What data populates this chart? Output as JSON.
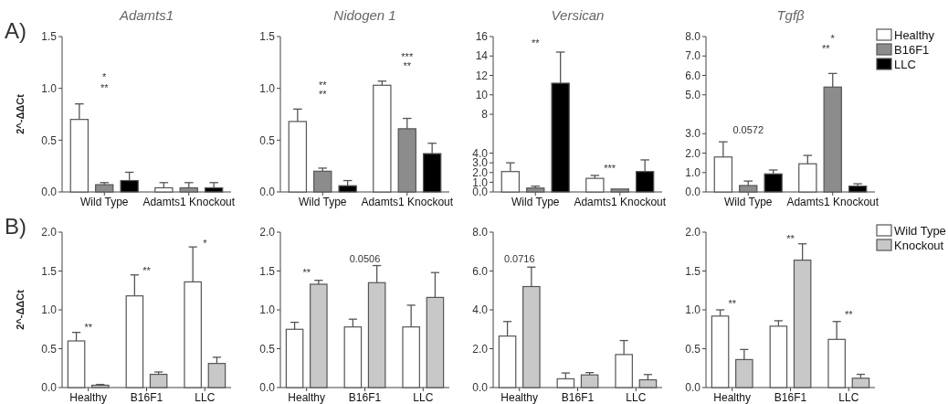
{
  "chart_data": [
    {
      "type": "bar",
      "title": "Adamts1",
      "ylabel": "2^-ΔΔCt",
      "categories": [
        "Wild Type",
        "Adamts1 Knockout"
      ],
      "series": [
        {
          "color": "#ffffff",
          "values": [
            0.7,
            0.04
          ],
          "errors": [
            0.15,
            0.05
          ]
        },
        {
          "color": "#8c8c8c",
          "values": [
            0.07,
            0.04
          ],
          "errors": [
            0.02,
            0.05
          ]
        },
        {
          "color": "#000000",
          "values": [
            0.11,
            0.04
          ],
          "errors": [
            0.08,
            0.05
          ]
        }
      ],
      "ylim": [
        0,
        1.5
      ],
      "yticks": [
        {
          "value": 0,
          "label": "0.0"
        },
        {
          "value": 0.5,
          "label": "0.5"
        },
        {
          "value": 1,
          "label": "1.0"
        },
        {
          "value": 1.5,
          "label": "1.5"
        }
      ],
      "annotations": [
        "A)",
        "**",
        "*"
      ]
    },
    {
      "type": "bar",
      "title": "Nidogen 1",
      "categories": [
        "Wild Type",
        "Adamts1 Knockout"
      ],
      "series": [
        {
          "color": "#ffffff",
          "values": [
            0.68,
            1.03
          ],
          "errors": [
            0.12,
            0.04
          ]
        },
        {
          "color": "#8c8c8c",
          "values": [
            0.2,
            0.61
          ],
          "errors": [
            0.03,
            0.1
          ]
        },
        {
          "color": "#000000",
          "values": [
            0.06,
            0.37
          ],
          "errors": [
            0.05,
            0.1
          ]
        }
      ],
      "ylim": [
        0,
        1.5
      ],
      "yticks": [
        {
          "value": 0,
          "label": "0.0"
        },
        {
          "value": 0.5,
          "label": "0.5"
        },
        {
          "value": 1,
          "label": "1.0"
        },
        {
          "value": 1.5,
          "label": "1.5"
        }
      ],
      "annotations": [
        "**",
        "**",
        "**",
        "***"
      ]
    },
    {
      "type": "bar",
      "title": "Versican",
      "categories": [
        "Wild Type",
        "Adamts1 Knockout"
      ],
      "series": [
        {
          "color": "#ffffff",
          "values": [
            2.1,
            1.4
          ],
          "errors": [
            0.9,
            0.3
          ]
        },
        {
          "color": "#8c8c8c",
          "values": [
            0.4,
            0.3
          ],
          "errors": [
            0.2,
            null
          ]
        },
        {
          "color": "#000000",
          "values": [
            11.2,
            2.1
          ],
          "errors": [
            3.2,
            1.2
          ]
        }
      ],
      "ylim": [
        0,
        16
      ],
      "yticks": [
        {
          "value": 0,
          "label": "0.0"
        },
        {
          "value": 1,
          "label": "1.0"
        },
        {
          "value": 2,
          "label": "2.0"
        },
        {
          "value": 3,
          "label": "3.0"
        },
        {
          "value": 4,
          "label": "4.0"
        },
        8,
        10,
        12,
        14,
        16
      ],
      "annotations": [
        "**",
        "***"
      ]
    },
    {
      "type": "bar",
      "title": "Tgfβ",
      "categories": [
        "Wild Type",
        "Adamts1 Knockout"
      ],
      "legend": "top right",
      "series": [
        {
          "name": "Healthy",
          "color": "#ffffff",
          "values": [
            1.8,
            1.45
          ],
          "errors": [
            0.78,
            0.43
          ]
        },
        {
          "name": "B16F1",
          "color": "#8c8c8c",
          "values": [
            0.33,
            5.4
          ],
          "errors": [
            0.23,
            0.7
          ]
        },
        {
          "name": "LLC",
          "color": "#000000",
          "values": [
            0.93,
            0.3
          ],
          "errors": [
            0.2,
            0.12
          ]
        }
      ],
      "ylim": [
        0,
        8
      ],
      "yticks": [
        {
          "value": 0,
          "label": "0.0"
        },
        {
          "value": 1,
          "label": "1.0"
        },
        {
          "value": 2,
          "label": "2.0"
        },
        {
          "value": 3,
          "label": "3.0"
        },
        {
          "value": 5,
          "label": "5.0"
        },
        {
          "value": 6,
          "label": "6.0"
        },
        {
          "value": 7,
          "label": "7.0"
        },
        {
          "value": 8,
          "label": "8.0"
        }
      ],
      "annotations": [
        "0.0572",
        "**",
        "*"
      ]
    },
    {
      "type": "bar",
      "ylabel": "2^-ΔΔCt",
      "categories": [
        "Healthy",
        "B16F1",
        "LLC"
      ],
      "series": [
        {
          "color": "#ffffff",
          "values": [
            0.6,
            1.18,
            1.36
          ],
          "errors": [
            0.11,
            0.27,
            0.45
          ]
        },
        {
          "color": "#c8c8c8",
          "values": [
            0.03,
            0.17,
            0.31
          ],
          "errors": [
            0.01,
            0.03,
            0.08
          ]
        }
      ],
      "ylim": [
        0,
        2
      ],
      "yticks": [
        {
          "value": 0,
          "label": "0.0"
        },
        {
          "value": 0.5,
          "label": "0.5"
        },
        {
          "value": 1,
          "label": "1.0"
        },
        {
          "value": 1.5,
          "label": "1.5"
        },
        {
          "value": 2,
          "label": "2.0"
        }
      ],
      "annotations": [
        "B)",
        "**",
        "**",
        "*"
      ]
    },
    {
      "type": "bar",
      "categories": [
        "Healthy",
        "B16F1",
        "LLC"
      ],
      "series": [
        {
          "color": "#ffffff",
          "values": [
            0.75,
            0.78,
            0.78
          ],
          "errors": [
            0.09,
            0.1,
            0.28
          ]
        },
        {
          "color": "#c8c8c8",
          "values": [
            1.33,
            1.35,
            1.16
          ],
          "errors": [
            0.05,
            0.22,
            0.32
          ]
        }
      ],
      "ylim": [
        0,
        2
      ],
      "yticks": [
        {
          "value": 0,
          "label": "0.0"
        },
        {
          "value": 0.5,
          "label": "0.5"
        },
        {
          "value": 1,
          "label": "1.0"
        },
        {
          "value": 1.5,
          "label": "1.5"
        },
        {
          "value": 2,
          "label": "2.0"
        }
      ],
      "annotations": [
        "**",
        "0.0506"
      ]
    },
    {
      "type": "bar",
      "categories": [
        "Healthy",
        "B16F1",
        "LLC"
      ],
      "series": [
        {
          "color": "#ffffff",
          "values": [
            2.65,
            0.45,
            1.7
          ],
          "errors": [
            0.75,
            0.3,
            0.72
          ]
        },
        {
          "color": "#c8c8c8",
          "values": [
            5.2,
            0.65,
            0.4
          ],
          "errors": [
            1.0,
            0.12,
            0.27
          ]
        }
      ],
      "ylim": [
        0,
        8
      ],
      "yticks": [
        {
          "value": 0,
          "label": "0.0"
        },
        {
          "value": 2,
          "label": "2.0"
        },
        {
          "value": 4,
          "label": "4.0"
        },
        {
          "value": 6,
          "label": "6.0"
        },
        {
          "value": 8,
          "label": "8.0"
        }
      ],
      "annotations": [
        "0.0716"
      ]
    },
    {
      "type": "bar",
      "categories": [
        "Healthy",
        "B16F1",
        "LLC"
      ],
      "legend": "top right",
      "series": [
        {
          "name": "Wild Type",
          "color": "#ffffff",
          "values": [
            0.92,
            0.79,
            0.62
          ],
          "errors": [
            0.08,
            0.07,
            0.23
          ]
        },
        {
          "name": "Knockout",
          "color": "#c8c8c8",
          "values": [
            0.36,
            1.64,
            0.12
          ],
          "errors": [
            0.13,
            0.21,
            0.05
          ]
        }
      ],
      "ylim": [
        0,
        2
      ],
      "yticks": [
        {
          "value": 0,
          "label": "0.0"
        },
        {
          "value": 0.5,
          "label": "0.5"
        },
        {
          "value": 1,
          "label": "1.0"
        },
        {
          "value": 1.5,
          "label": "1.5"
        },
        {
          "value": 2,
          "label": "2.0"
        }
      ],
      "annotations": [
        "**",
        "**",
        "**"
      ]
    }
  ]
}
